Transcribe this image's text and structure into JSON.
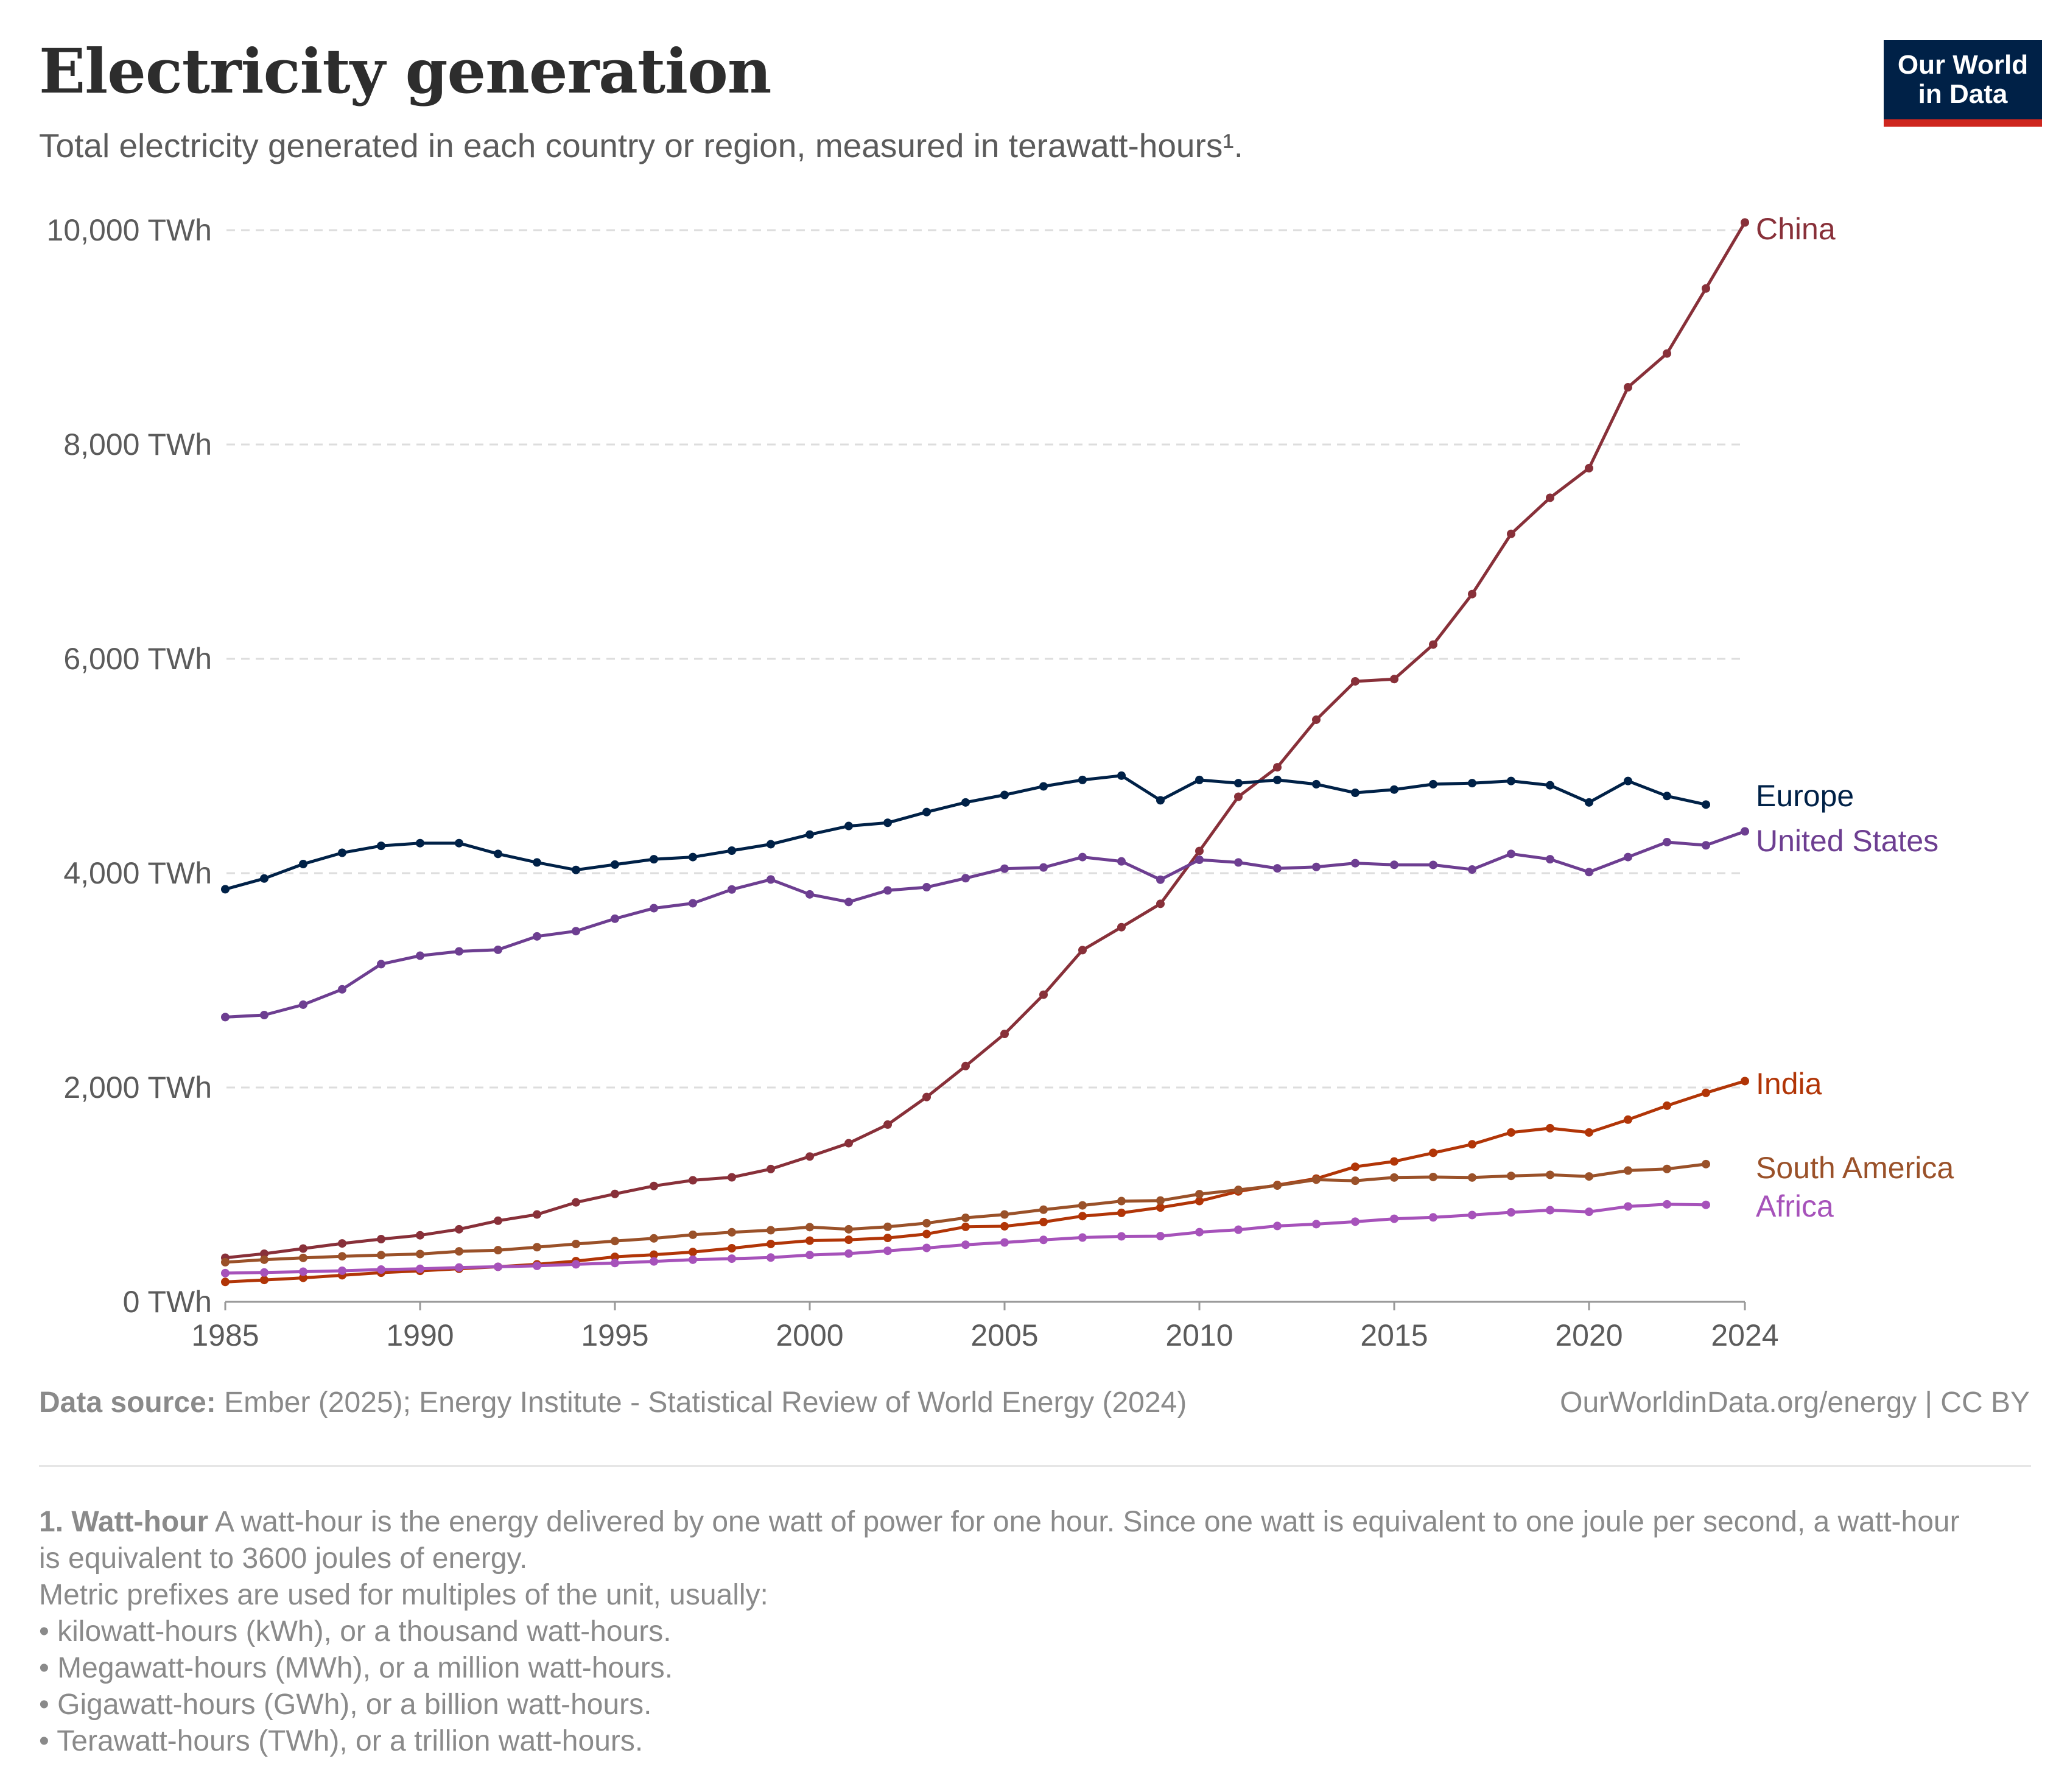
{
  "header": {
    "title": "Electricity generation",
    "subtitle": "Total electricity generated in each country or region, measured in terawatt-hours¹."
  },
  "logo": {
    "line1": "Our World",
    "line2": "in Data"
  },
  "footer": {
    "source_label": "Data source:",
    "source_text": " Ember (2025); Energy Institute - Statistical Review of World Energy (2024)",
    "credit": "OurWorldinData.org/energy | CC BY"
  },
  "notes": {
    "heading": "1. Watt-hour",
    "text": " A watt-hour is the energy delivered by one watt of power for one hour. Since one watt is equivalent to one joule per second, a watt-hour is equivalent to 3600 joules of energy.",
    "prefix_intro": "Metric prefixes are used for multiples of the unit, usually:",
    "bullets": [
      "• kilowatt-hours (kWh), or a thousand watt-hours.",
      "• Megawatt-hours (MWh), or a million watt-hours.",
      "• Gigawatt-hours (GWh), or a billion watt-hours.",
      "• Terawatt-hours (TWh), or a trillion watt-hours."
    ]
  },
  "chart_data": {
    "type": "line",
    "title": "Electricity generation",
    "ylim": [
      0,
      10000
    ],
    "xlim": [
      1985,
      2024
    ],
    "y_ticks": [
      {
        "value": 0,
        "label": "0 TWh"
      },
      {
        "value": 2000,
        "label": "2,000 TWh"
      },
      {
        "value": 4000,
        "label": "4,000 TWh"
      },
      {
        "value": 6000,
        "label": "6,000 TWh"
      },
      {
        "value": 8000,
        "label": "8,000 TWh"
      },
      {
        "value": 10000,
        "label": "10,000 TWh"
      }
    ],
    "x_ticks": [
      {
        "value": 1985,
        "label": "1985"
      },
      {
        "value": 1990,
        "label": "1990"
      },
      {
        "value": 1995,
        "label": "1995"
      },
      {
        "value": 2000,
        "label": "2000"
      },
      {
        "value": 2005,
        "label": "2005"
      },
      {
        "value": 2010,
        "label": "2010"
      },
      {
        "value": 2015,
        "label": "2015"
      },
      {
        "value": 2020,
        "label": "2020"
      },
      {
        "value": 2024,
        "label": "2024"
      }
    ],
    "grid": "horizontal dashed",
    "legend": "labels at line ends (right)",
    "series": [
      {
        "name": "China",
        "color": "#883039",
        "start_year": 1985,
        "values": [
          411,
          449,
          497,
          545,
          585,
          621,
          677,
          757,
          815,
          928,
          1007,
          1081,
          1134,
          1162,
          1239,
          1356,
          1480,
          1654,
          1911,
          2200,
          2500,
          2866,
          3282,
          3496,
          3714,
          4207,
          4713,
          4988,
          5432,
          5790,
          5811,
          6133,
          6604,
          7166,
          7503,
          7779,
          8534,
          8849,
          9456,
          10072
        ]
      },
      {
        "name": "Europe",
        "color": "#002147",
        "start_year": 1985,
        "values": [
          3850,
          3950,
          4085,
          4190,
          4255,
          4280,
          4280,
          4180,
          4100,
          4030,
          4080,
          4130,
          4150,
          4210,
          4270,
          4360,
          4440,
          4470,
          4570,
          4660,
          4730,
          4810,
          4870,
          4910,
          4680,
          4870,
          4840,
          4870,
          4830,
          4750,
          4780,
          4830,
          4840,
          4860,
          4820,
          4660,
          4860,
          4720,
          4640
        ]
      },
      {
        "name": "United States",
        "color": "#6d3e91",
        "start_year": 1985,
        "values": [
          2657,
          2676,
          2773,
          2916,
          3151,
          3230,
          3270,
          3285,
          3410,
          3459,
          3575,
          3673,
          3719,
          3848,
          3941,
          3802,
          3731,
          3839,
          3869,
          3953,
          4042,
          4053,
          4150,
          4110,
          3939,
          4125,
          4100,
          4045,
          4058,
          4093,
          4078,
          4077,
          4034,
          4180,
          4130,
          4010,
          4150,
          4290,
          4260,
          4390
        ]
      },
      {
        "name": "India",
        "color": "#b13507",
        "start_year": 1985,
        "values": [
          186,
          204,
          224,
          248,
          272,
          289,
          309,
          327,
          350,
          380,
          420,
          440,
          465,
          500,
          540,
          571,
          579,
          596,
          633,
          700,
          705,
          745,
          800,
          830,
          880,
          940,
          1030,
          1090,
          1150,
          1260,
          1310,
          1390,
          1470,
          1580,
          1620,
          1580,
          1700,
          1830,
          1950,
          2060
        ]
      },
      {
        "name": "South America",
        "color": "#9a5129",
        "start_year": 1985,
        "values": [
          370,
          393,
          410,
          425,
          436,
          446,
          471,
          482,
          510,
          540,
          567,
          592,
          626,
          649,
          668,
          697,
          677,
          700,
          734,
          784,
          815,
          860,
          900,
          940,
          945,
          1005,
          1045,
          1085,
          1140,
          1130,
          1160,
          1165,
          1160,
          1175,
          1185,
          1170,
          1225,
          1240,
          1285
        ]
      },
      {
        "name": "Africa",
        "color": "#a652ba",
        "start_year": 1985,
        "values": [
          268,
          274,
          281,
          290,
          301,
          308,
          320,
          327,
          336,
          350,
          362,
          377,
          393,
          403,
          413,
          437,
          450,
          476,
          503,
          533,
          554,
          578,
          600,
          611,
          613,
          650,
          673,
          708,
          725,
          748,
          775,
          788,
          810,
          835,
          855,
          840,
          890,
          910,
          905
        ]
      }
    ]
  }
}
